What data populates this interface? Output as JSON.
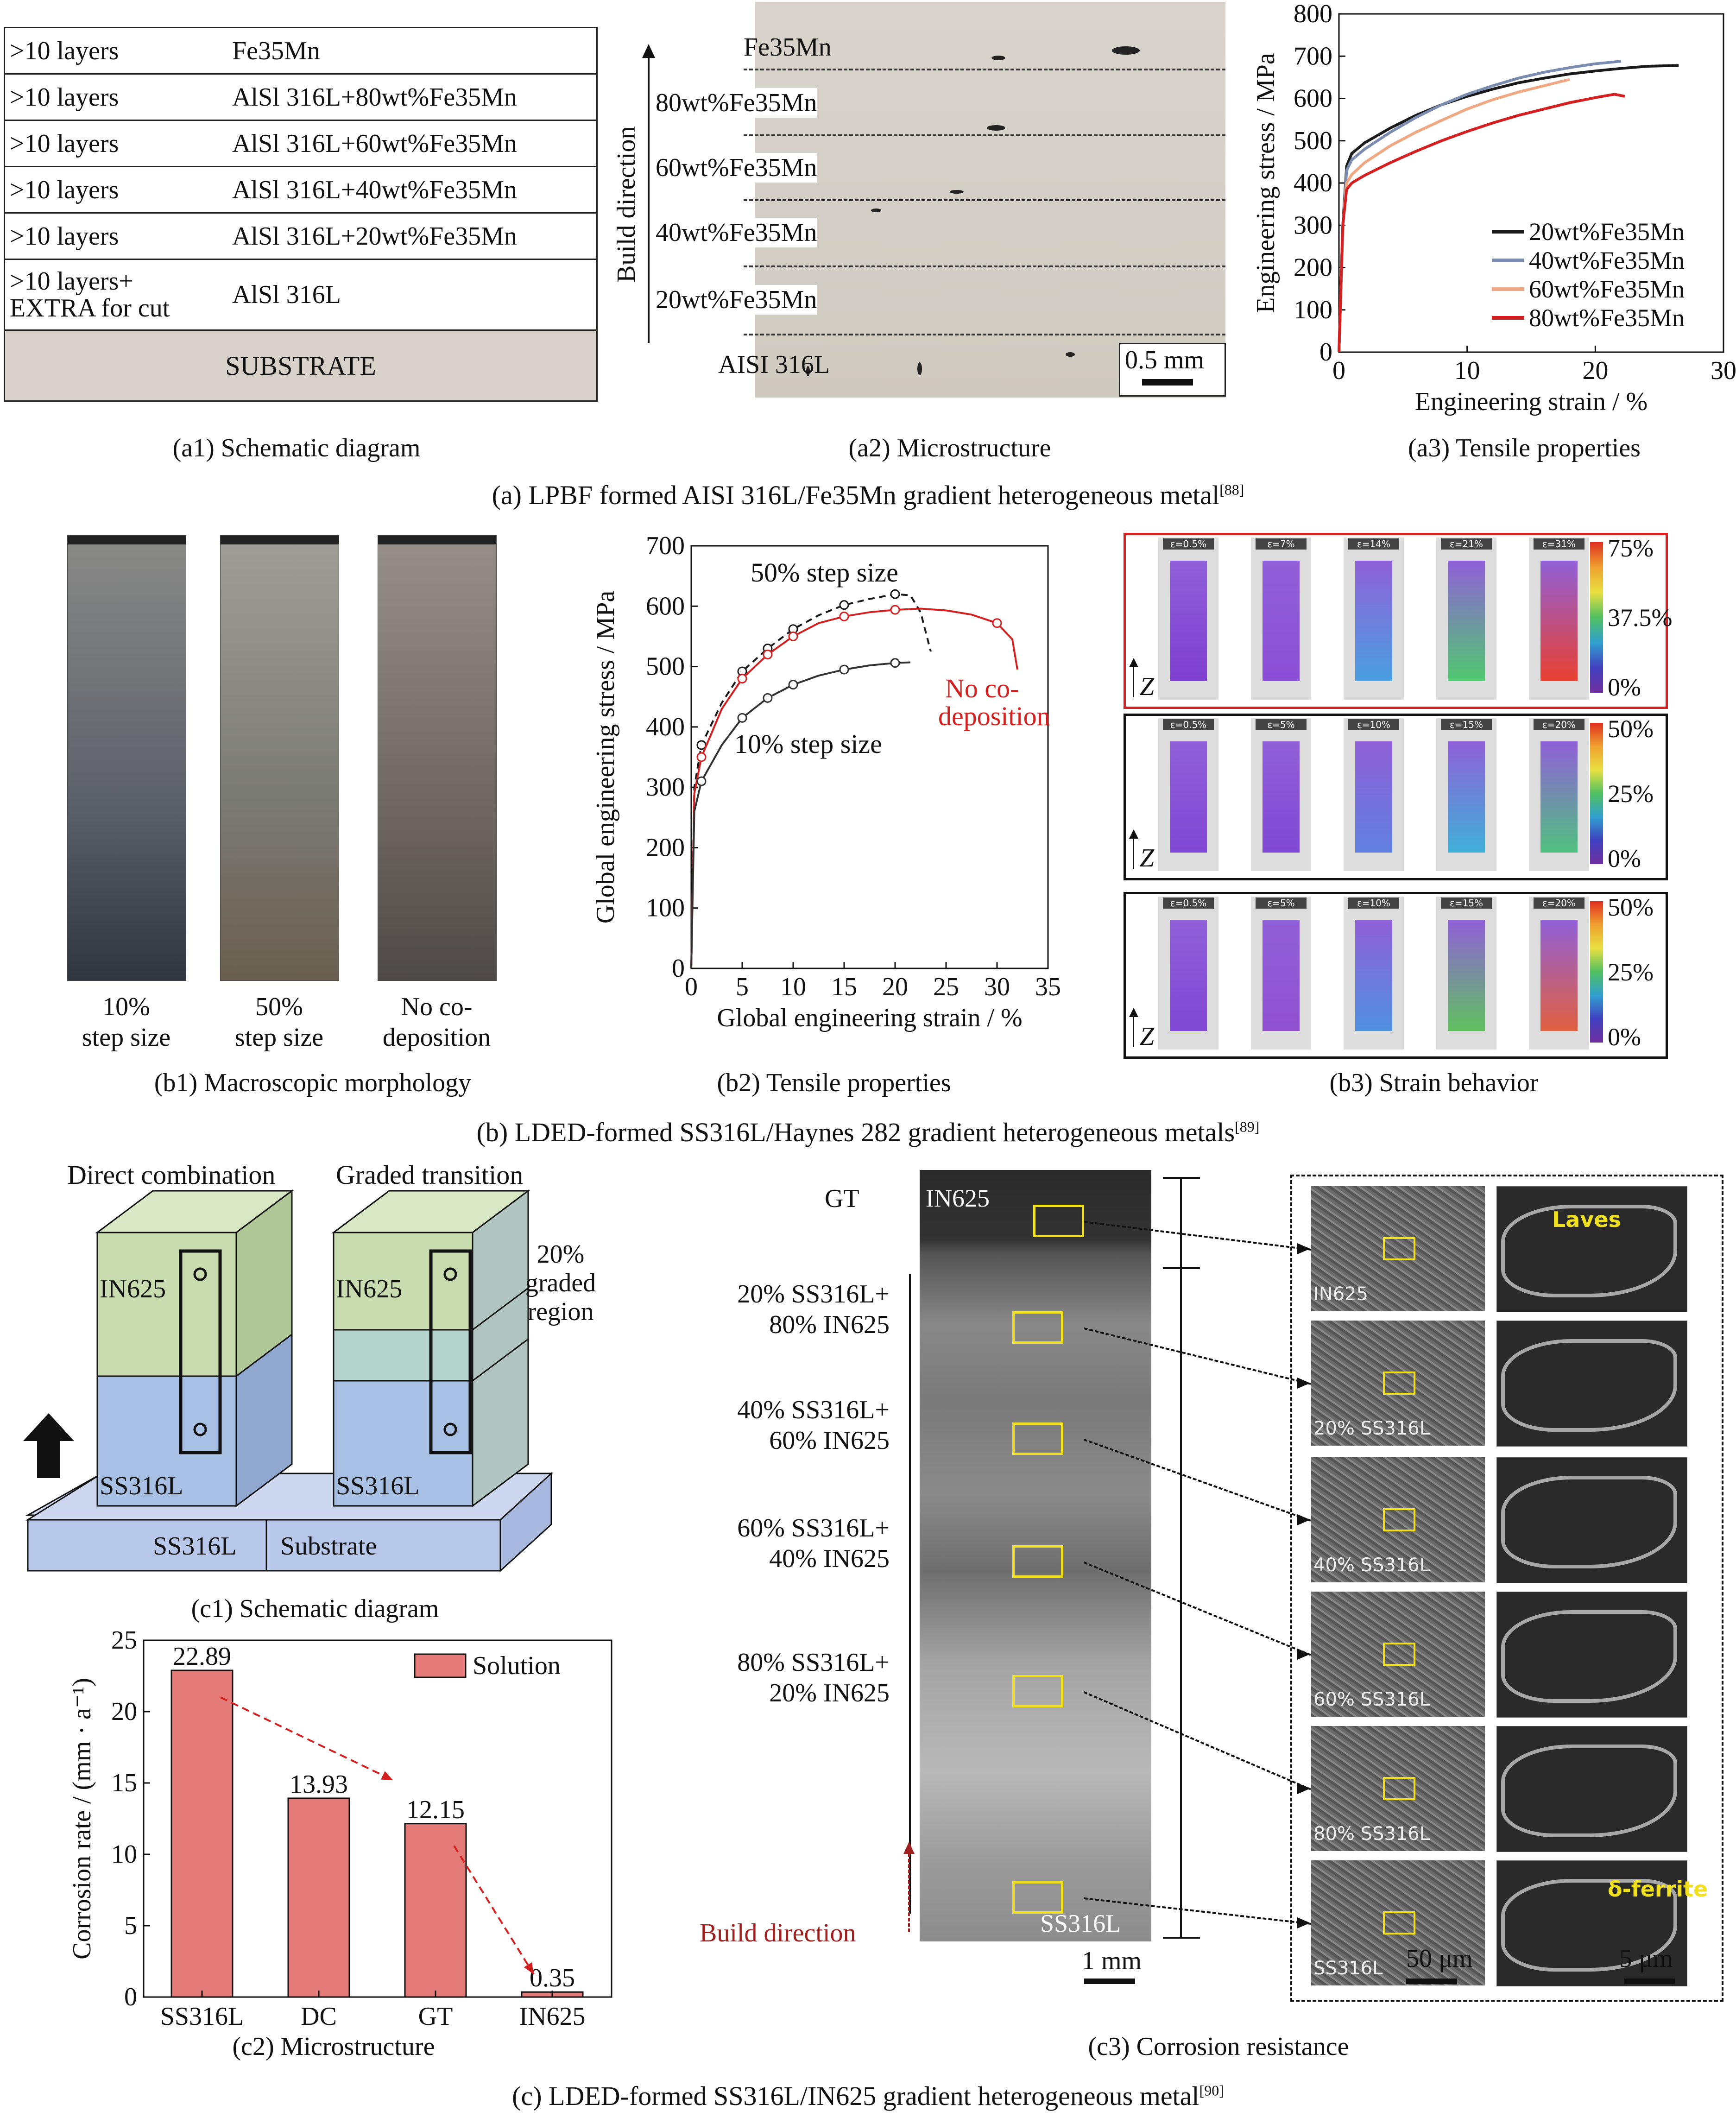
{
  "a": {
    "caption": "(a) LPBF formed AISI 316L/Fe35Mn gradient heterogeneous metal",
    "ref": "[88]",
    "a1": {
      "caption": "(a1) Schematic diagram",
      "rows": [
        {
          "layers": ">10 layers",
          "material": "Fe35Mn"
        },
        {
          "layers": ">10 layers",
          "material": "AlSl 316L+80wt%Fe35Mn"
        },
        {
          "layers": ">10 layers",
          "material": "AlSl 316L+60wt%Fe35Mn"
        },
        {
          "layers": ">10 layers",
          "material": "AlSl 316L+40wt%Fe35Mn"
        },
        {
          "layers": ">10 layers",
          "material": "AlSl 316L+20wt%Fe35Mn"
        },
        {
          "layers": ">10 layers+\nEXTRA for cut",
          "material": "AlSl 316L"
        }
      ],
      "substrate": "SUBSTRATE"
    },
    "a2": {
      "caption": "(a2) Microstructure",
      "build_direction": "Build direction",
      "layers": [
        "Fe35Mn",
        "80wt%Fe35Mn",
        "60wt%Fe35Mn",
        "40wt%Fe35Mn",
        "20wt%Fe35Mn",
        "AISI 316L"
      ],
      "scale": "0.5 mm"
    },
    "a3": {
      "caption": "(a3) Tensile properties",
      "chart_data": {
        "type": "line",
        "xlabel": "Engineering strain / %",
        "ylabel": "Engineering stress / MPa",
        "xlim": [
          0,
          30
        ],
        "ylim": [
          0,
          800
        ],
        "xticks": [
          "0",
          "10",
          "20",
          "30"
        ],
        "yticks": [
          "0",
          "100",
          "200",
          "300",
          "400",
          "500",
          "600",
          "700",
          "800"
        ],
        "legend": "bottom-right",
        "series": [
          {
            "name": "20wt%Fe35Mn",
            "color": "#1a1a1a",
            "x": [
              0,
              0.3,
              0.6,
              1,
              2,
              4,
              6,
              8,
              10,
              12,
              14,
              16,
              18,
              20,
              22,
              24,
              26.5
            ],
            "y": [
              0,
              300,
              440,
              470,
              495,
              530,
              560,
              585,
              605,
              622,
              637,
              648,
              658,
              665,
              671,
              676,
              678
            ]
          },
          {
            "name": "40wt%Fe35Mn",
            "color": "#7a8cb0",
            "x": [
              0,
              0.3,
              0.6,
              1,
              2,
              4,
              6,
              8,
              10,
              12,
              14,
              16,
              18,
              20,
              22
            ],
            "y": [
              0,
              290,
              430,
              455,
              480,
              520,
              555,
              585,
              610,
              630,
              648,
              662,
              673,
              682,
              688
            ]
          },
          {
            "name": "60wt%Fe35Mn",
            "color": "#f0a882",
            "x": [
              0,
              0.3,
              0.6,
              1,
              2,
              4,
              6,
              8,
              10,
              12,
              14,
              16,
              18
            ],
            "y": [
              0,
              300,
              400,
              420,
              448,
              488,
              520,
              548,
              575,
              597,
              615,
              630,
              645
            ]
          },
          {
            "name": "80wt%Fe35Mn",
            "color": "#d42020",
            "x": [
              0,
              0.3,
              0.6,
              1,
              2,
              4,
              6,
              8,
              10,
              12,
              14,
              16,
              18,
              20,
              21.5,
              22.3
            ],
            "y": [
              0,
              300,
              385,
              400,
              418,
              448,
              475,
              500,
              522,
              542,
              560,
              575,
              590,
              602,
              610,
              605
            ]
          }
        ]
      }
    }
  },
  "b": {
    "caption": "(b) LDED-formed SS316L/Haynes 282 gradient heterogeneous metals",
    "ref": "[89]",
    "b1": {
      "caption": "(b1) Macroscopic morphology",
      "samples": [
        "10%\nstep size",
        "50%\nstep size",
        "No co-\ndeposition"
      ]
    },
    "b2": {
      "caption": "(b2) Tensile properties",
      "annotations": [
        "50% step size",
        "No co-\ndeposition",
        "10% step size"
      ],
      "chart_data": {
        "type": "line",
        "xlabel": "Global engineering strain / %",
        "ylabel": "Global engineering stress / MPa",
        "xlim": [
          0,
          35
        ],
        "ylim": [
          0,
          700
        ],
        "xticks": [
          "0",
          "5",
          "10",
          "15",
          "20",
          "25",
          "30",
          "35"
        ],
        "yticks": [
          "0",
          "100",
          "200",
          "300",
          "400",
          "500",
          "600",
          "700"
        ],
        "series": [
          {
            "name": "50% step size",
            "color": "#1a1a1a",
            "dashed": true,
            "x": [
              0,
              0.3,
              1,
              3,
              5,
              7.5,
              10,
              12.5,
              15,
              17.5,
              20,
              21.5,
              22.5,
              23.5
            ],
            "y": [
              0,
              300,
              370,
              440,
              492,
              530,
              562,
              585,
              602,
              612,
              620,
              618,
              590,
              525
            ]
          },
          {
            "name": "No co-deposition",
            "color": "#d42020",
            "x": [
              0,
              0.3,
              1,
              3,
              5,
              7.5,
              10,
              12.5,
              15,
              17.5,
              20,
              22.5,
              25,
              27.5,
              30,
              31.5,
              32
            ],
            "y": [
              0,
              290,
              350,
              430,
              480,
              520,
              550,
              572,
              583,
              590,
              594,
              596,
              593,
              586,
              572,
              545,
              495
            ]
          },
          {
            "name": "10% step size",
            "color": "#333333",
            "x": [
              0,
              0.3,
              1,
              3,
              5,
              7.5,
              10,
              12.5,
              15,
              17.5,
              20,
              21.5
            ],
            "y": [
              0,
              260,
              310,
              370,
              415,
              448,
              470,
              485,
              495,
              502,
              506,
              507
            ]
          }
        ]
      }
    },
    "b3": {
      "caption": "(b3) Strain behavior",
      "axis": "Z",
      "rows": [
        {
          "strains": [
            "ε=0.5%",
            "ε=7%",
            "ε=14%",
            "ε=21%",
            "ε=31%"
          ],
          "scale": [
            "75%",
            "37.5%",
            "0%"
          ],
          "border": "#d42020"
        },
        {
          "strains": [
            "ε=0.5%",
            "ε=5%",
            "ε=10%",
            "ε=15%",
            "ε=20%"
          ],
          "scale": [
            "50%",
            "25%",
            "0%"
          ],
          "border": "#111111"
        },
        {
          "strains": [
            "ε=0.5%",
            "ε=5%",
            "ε=10%",
            "ε=15%",
            "ε=20%"
          ],
          "scale": [
            "50%",
            "25%",
            "0%"
          ],
          "border": "#111111"
        }
      ]
    }
  },
  "c": {
    "caption": "(c) LDED-formed SS316L/IN625 gradient heterogeneous metal",
    "ref": "[90]",
    "c1": {
      "caption": "(c1) Schematic diagram",
      "labels": {
        "direct": "Direct combination",
        "graded": "Graded transition",
        "in625_a": "IN625",
        "in625_b": "IN625",
        "ss_a": "SS316L",
        "ss_b": "SS316L",
        "graded_region": "20%\ngraded\nregion",
        "ss_base": "SS316L",
        "substrate": "Substrate"
      }
    },
    "c2": {
      "caption": "(c2) Microstructure",
      "chart_data": {
        "type": "bar",
        "categories": [
          "SS316L",
          "DC",
          "GT",
          "IN625"
        ],
        "values": [
          22.89,
          13.93,
          12.15,
          0.35
        ],
        "value_labels": [
          "22.89",
          "13.93",
          "12.15",
          "0.35"
        ],
        "ylabel": "Corrosion rate / (mm · a⁻¹)",
        "ylim": [
          0,
          25
        ],
        "yticks": [
          "0",
          "5",
          "10",
          "15",
          "20",
          "25"
        ],
        "legend": "Solution",
        "bar_color": "#e57b78"
      }
    },
    "c3": {
      "caption": "(c3) Corrosion resistance",
      "gt": "GT",
      "zones": [
        "20% SS316L+\n80% IN625",
        "40% SS316L+\n60% IN625",
        "60% SS316L+\n40% IN625",
        "80% SS316L+\n20% IN625"
      ],
      "in625": "IN625",
      "ss316l": "SS316L",
      "build_direction": "Build direction",
      "scale_1mm": "1 mm",
      "scale_50um": "50 μm",
      "scale_5um": "5 μm",
      "sem_labels": [
        "IN625",
        "20% SS316L",
        "40% SS316L",
        "60% SS316L",
        "80% SS316L",
        "SS316L"
      ],
      "laves": "Laves",
      "ferrite": "δ-ferrite"
    }
  }
}
